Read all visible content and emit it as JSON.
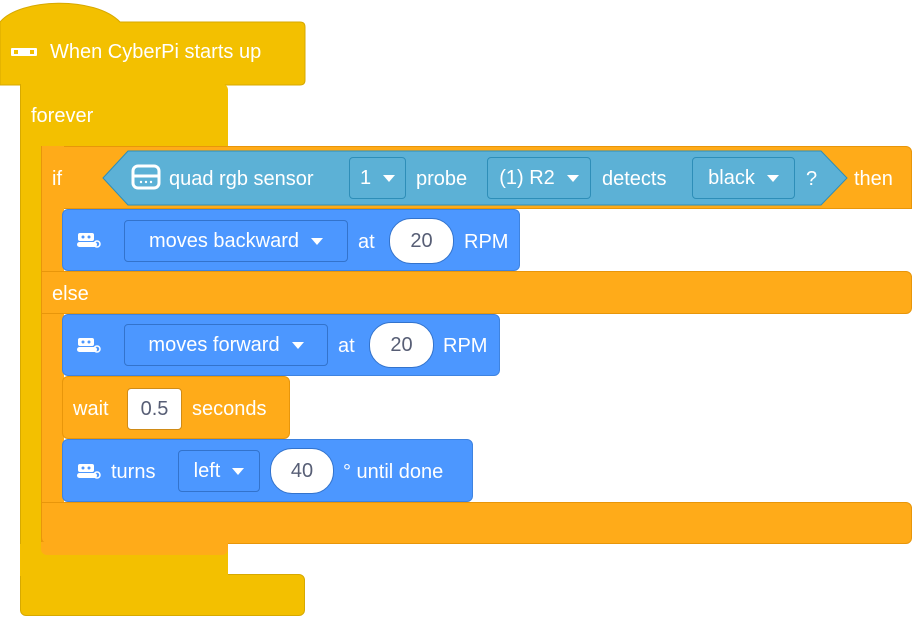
{
  "hat": {
    "label": "When CyberPi starts up"
  },
  "forever": {
    "label": "forever"
  },
  "if_block": {
    "if_label": "if",
    "then_label": "then",
    "else_label": "else",
    "condition": {
      "sensor_label": "quad rgb sensor",
      "sensor_index": "1",
      "probe_label": "probe",
      "probe_value": "(1) R2",
      "detects_label": "detects",
      "color_value": "black",
      "question": "?"
    }
  },
  "moves_backward": {
    "direction": "moves backward",
    "at_label": "at",
    "speed": "20",
    "unit": "RPM"
  },
  "moves_forward": {
    "direction": "moves forward",
    "at_label": "at",
    "speed": "20",
    "unit": "RPM"
  },
  "wait": {
    "label": "wait",
    "value": "0.5",
    "unit": "seconds"
  },
  "turns": {
    "label": "turns",
    "direction": "left",
    "angle": "40",
    "suffix": "° until done"
  },
  "colors": {
    "events": "#f3c000",
    "control": "#ffab19",
    "motion": "#4c97ff",
    "sensing": "#5cb1d6"
  },
  "icons": {
    "hat": "cyberpi-board-icon",
    "sensor": "rgb-sensor-icon",
    "robot": "mbot-robot-icon"
  }
}
